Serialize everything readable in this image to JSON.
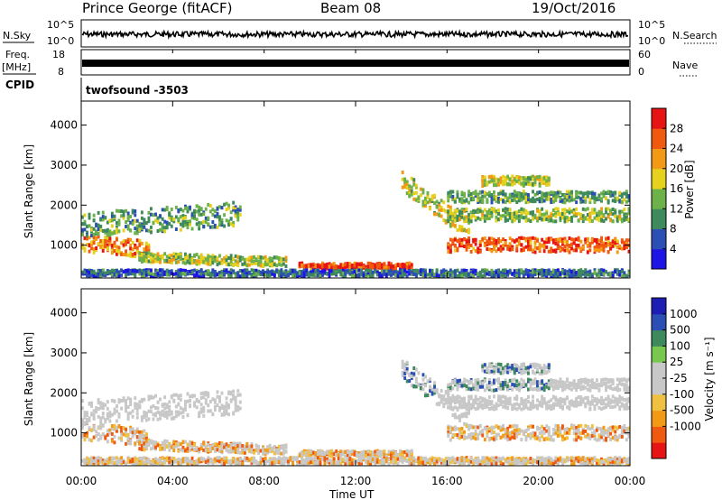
{
  "header": {
    "station": "Prince George (fitACF)",
    "beam": "Beam 08",
    "date": "19/Oct/2016"
  },
  "top_panels": {
    "nsky_label": "N.Sky",
    "nsky_ticks": [
      "10^5",
      "10^0"
    ],
    "nsearch_label": "N.Search",
    "nsearch_ticks": [
      "10^5",
      "10^0"
    ],
    "freq_label": "Freq.",
    "freq_unit": "[MHz]",
    "freq_ticks": [
      "18",
      "8"
    ],
    "nave_label": "Nave",
    "nave_ticks": [
      "60",
      "0"
    ],
    "cpid_label": "CPID",
    "cpid_value": "twofsound -3503"
  },
  "colors": {
    "power": [
      "#1e14e6",
      "#2b4fb4",
      "#3f8a5c",
      "#6db14a",
      "#e6d21e",
      "#f29a16",
      "#f05a10",
      "#e61414"
    ],
    "velocity": [
      "#e61414",
      "#f05a10",
      "#f29a16",
      "#f0c040",
      "#c8c8c8",
      "#c8c8c8",
      "#78c850",
      "#3f8a5c",
      "#2b4fb4",
      "#1e1eb4"
    ]
  },
  "chart_data": [
    {
      "type": "heatmap",
      "name": "power",
      "xlabel": "",
      "ylabel": "Slant Range [km]",
      "x_ticks": [
        "00:00",
        "04:00",
        "08:00",
        "12:00",
        "16:00",
        "20:00",
        "00:00"
      ],
      "xlim_hours": [
        0,
        24
      ],
      "ylim": [
        180,
        4600
      ],
      "y_ticks": [
        1000,
        2000,
        3000,
        4000
      ],
      "colorbar_label": "Power [dB]",
      "colorbar_ticks": [
        4,
        8,
        12,
        16,
        20,
        24,
        28
      ],
      "colorbar_range": [
        0,
        32
      ]
    },
    {
      "type": "heatmap",
      "name": "velocity",
      "xlabel": "Time UT",
      "ylabel": "Slant Range [km]",
      "x_ticks": [
        "00:00",
        "04:00",
        "08:00",
        "12:00",
        "16:00",
        "20:00",
        "00:00"
      ],
      "xlim_hours": [
        0,
        24
      ],
      "ylim": [
        180,
        4600
      ],
      "y_ticks": [
        1000,
        2000,
        3000,
        4000
      ],
      "colorbar_label": "Velocity [m s⁻¹]",
      "colorbar_ticks": [
        "1000",
        "500",
        "100",
        "25",
        "-25",
        "-100",
        "-500",
        "-1000"
      ]
    }
  ]
}
